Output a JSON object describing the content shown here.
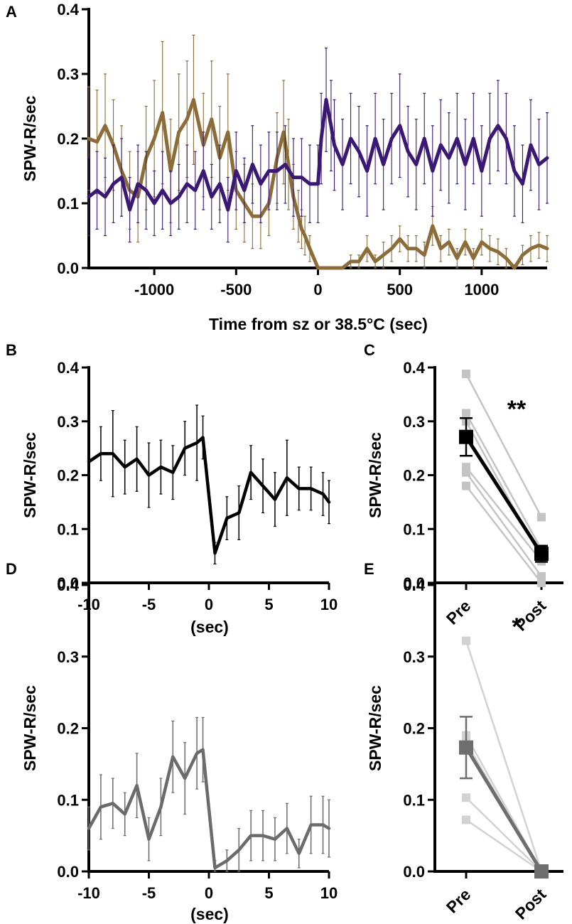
{
  "colors": {
    "purple": "#3a1873",
    "brown": "#8c6d3a",
    "black": "#000000",
    "gray": "#6b6b6b",
    "light_gray": "#c4c4c4",
    "light_gray2": "#d2d2d2",
    "dark_gray": "#6e6e6e"
  },
  "chart_data": [
    {
      "panel": "A",
      "type": "line",
      "title": "",
      "xlabel": "Time from sz or 38.5°C (sec)",
      "ylabel": "SPW-R/sec",
      "xlim": [
        -1400,
        1400
      ],
      "ylim": [
        0,
        0.4
      ],
      "xticks": [
        -1000,
        -500,
        0,
        500,
        1000
      ],
      "xtick_labels": [
        "-1000",
        "-500",
        "0",
        "500",
        "1000"
      ],
      "yticks": [
        0.0,
        0.1,
        0.2,
        0.3,
        0.4
      ],
      "ytick_labels": [
        "0.0",
        "0.1",
        "0.2",
        "0.3",
        "0.4"
      ],
      "series": [
        {
          "name": "brown",
          "color_key": "brown",
          "x": [
            -1400,
            -1350,
            -1300,
            -1250,
            -1200,
            -1150,
            -1100,
            -1050,
            -1000,
            -950,
            -900,
            -850,
            -800,
            -760,
            -700,
            -650,
            -600,
            -550,
            -500,
            -450,
            -400,
            -350,
            -300,
            -250,
            -210,
            -180,
            -150,
            -120,
            -100,
            -80,
            -50,
            0,
            50,
            100,
            150,
            200,
            250,
            300,
            350,
            400,
            450,
            500,
            550,
            600,
            650,
            700,
            750,
            800,
            850,
            900,
            950,
            1000,
            1050,
            1100,
            1150,
            1200,
            1250,
            1300,
            1350,
            1400
          ],
          "y": [
            0.2,
            0.195,
            0.22,
            0.19,
            0.15,
            0.12,
            0.11,
            0.17,
            0.2,
            0.24,
            0.15,
            0.21,
            0.23,
            0.26,
            0.19,
            0.23,
            0.17,
            0.21,
            0.12,
            0.1,
            0.08,
            0.08,
            0.1,
            0.17,
            0.21,
            0.16,
            0.11,
            0.08,
            0.06,
            0.05,
            0.03,
            0.0,
            0.0,
            0.0,
            0.0,
            0.01,
            0.01,
            0.03,
            0.01,
            0.02,
            0.03,
            0.045,
            0.03,
            0.03,
            0.02,
            0.065,
            0.03,
            0.04,
            0.015,
            0.04,
            0.015,
            0.04,
            0.03,
            0.025,
            0.015,
            0.0,
            0.02,
            0.03,
            0.035,
            0.03
          ],
          "err": [
            0.08,
            0.08,
            0.08,
            0.07,
            0.07,
            0.06,
            0.07,
            0.08,
            0.09,
            0.11,
            0.08,
            0.09,
            0.09,
            0.1,
            0.08,
            0.09,
            0.08,
            0.09,
            0.06,
            0.06,
            0.05,
            0.05,
            0.05,
            0.07,
            0.08,
            0.07,
            0.05,
            0.04,
            0.03,
            0.03,
            0.02,
            0.0,
            0.0,
            0.0,
            0.0,
            0.01,
            0.01,
            0.02,
            0.01,
            0.02,
            0.02,
            0.02,
            0.02,
            0.02,
            0.02,
            0.03,
            0.02,
            0.02,
            0.015,
            0.02,
            0.015,
            0.02,
            0.02,
            0.02,
            0.015,
            0.005,
            0.015,
            0.02,
            0.02,
            0.02
          ]
        },
        {
          "name": "purple",
          "color_key": "purple",
          "x": [
            -1400,
            -1350,
            -1300,
            -1250,
            -1200,
            -1150,
            -1100,
            -1050,
            -1000,
            -950,
            -900,
            -850,
            -800,
            -750,
            -700,
            -650,
            -600,
            -550,
            -500,
            -450,
            -400,
            -350,
            -300,
            -250,
            -200,
            -150,
            -100,
            -50,
            0,
            20,
            50,
            80,
            100,
            150,
            200,
            250,
            300,
            350,
            400,
            450,
            500,
            550,
            600,
            650,
            700,
            750,
            800,
            850,
            900,
            950,
            1000,
            1050,
            1100,
            1150,
            1200,
            1250,
            1300,
            1350,
            1400
          ],
          "y": [
            0.11,
            0.12,
            0.11,
            0.13,
            0.14,
            0.09,
            0.13,
            0.12,
            0.1,
            0.12,
            0.1,
            0.11,
            0.13,
            0.12,
            0.15,
            0.11,
            0.13,
            0.09,
            0.15,
            0.12,
            0.16,
            0.13,
            0.15,
            0.15,
            0.16,
            0.14,
            0.14,
            0.13,
            0.13,
            0.2,
            0.26,
            0.22,
            0.19,
            0.16,
            0.2,
            0.18,
            0.15,
            0.2,
            0.16,
            0.2,
            0.22,
            0.18,
            0.16,
            0.2,
            0.15,
            0.19,
            0.17,
            0.2,
            0.16,
            0.2,
            0.15,
            0.2,
            0.22,
            0.2,
            0.15,
            0.13,
            0.19,
            0.16,
            0.17
          ],
          "err": [
            0.06,
            0.06,
            0.06,
            0.06,
            0.06,
            0.05,
            0.06,
            0.06,
            0.05,
            0.06,
            0.05,
            0.05,
            0.06,
            0.06,
            0.06,
            0.05,
            0.06,
            0.05,
            0.06,
            0.05,
            0.06,
            0.06,
            0.06,
            0.06,
            0.06,
            0.06,
            0.06,
            0.06,
            0.06,
            0.07,
            0.08,
            0.07,
            0.07,
            0.07,
            0.07,
            0.07,
            0.07,
            0.07,
            0.07,
            0.07,
            0.08,
            0.07,
            0.07,
            0.07,
            0.07,
            0.07,
            0.07,
            0.07,
            0.07,
            0.07,
            0.07,
            0.07,
            0.07,
            0.07,
            0.07,
            0.06,
            0.07,
            0.07,
            0.07
          ]
        }
      ]
    },
    {
      "panel": "B",
      "type": "line",
      "xlabel": "(sec)",
      "ylabel": "SPW-R/sec",
      "xlim": [
        -10,
        10
      ],
      "ylim": [
        0,
        0.4
      ],
      "xticks": [
        -10,
        -5,
        0,
        5,
        10
      ],
      "xtick_labels": [
        "-10",
        "-5",
        "0",
        "5",
        "10"
      ],
      "yticks": [
        0.0,
        0.1,
        0.2,
        0.3,
        0.4
      ],
      "ytick_labels": [
        "0.0",
        "0.1",
        "0.2",
        "0.3",
        "0.4"
      ],
      "series": [
        {
          "name": "mean",
          "color_key": "black",
          "x": [
            -10,
            -9,
            -8,
            -7,
            -6,
            -5,
            -4,
            -3,
            -2,
            -1,
            -0.5,
            0.5,
            1.5,
            2.5,
            3.5,
            4.5,
            5.5,
            6.5,
            7.5,
            8.5,
            9.5,
            10
          ],
          "y": [
            0.225,
            0.24,
            0.24,
            0.215,
            0.23,
            0.2,
            0.215,
            0.205,
            0.25,
            0.26,
            0.27,
            0.055,
            0.12,
            0.13,
            0.205,
            0.18,
            0.155,
            0.195,
            0.175,
            0.175,
            0.165,
            0.15
          ],
          "err": [
            0.06,
            0.05,
            0.08,
            0.05,
            0.06,
            0.06,
            0.05,
            0.05,
            0.05,
            0.07,
            0.04,
            0.02,
            0.04,
            0.05,
            0.05,
            0.05,
            0.05,
            0.07,
            0.04,
            0.04,
            0.04,
            0.04
          ]
        }
      ]
    },
    {
      "panel": "C",
      "type": "line",
      "xlabel": "",
      "ylabel": "SPW-R/sec",
      "categories": [
        "Pre",
        "Post"
      ],
      "ylim": [
        0,
        0.4
      ],
      "yticks": [
        0.0,
        0.1,
        0.2,
        0.3,
        0.4
      ],
      "ytick_labels": [
        "0.0",
        "0.1",
        "0.2",
        "0.3",
        "0.4"
      ],
      "annotation": "**",
      "individual": [
        [
          0.388,
          0.122
        ],
        [
          0.315,
          0.062
        ],
        [
          0.3,
          0.045
        ],
        [
          0.215,
          0.04
        ],
        [
          0.205,
          0.012
        ],
        [
          0.18,
          0.0
        ]
      ],
      "mean": [
        0.271,
        0.054
      ],
      "mean_err": [
        0.035,
        0.015
      ],
      "individual_color_key": "light_gray",
      "mean_color_key": "black"
    },
    {
      "panel": "D",
      "type": "line",
      "xlabel": "(sec)",
      "ylabel": "SPW-R/sec",
      "xlim": [
        -10,
        10
      ],
      "ylim": [
        0,
        0.4
      ],
      "xticks": [
        -10,
        -5,
        0,
        5,
        10
      ],
      "xtick_labels": [
        "-10",
        "-5",
        "0",
        "5",
        "10"
      ],
      "yticks": [
        0.0,
        0.1,
        0.2,
        0.3,
        0.4
      ],
      "ytick_labels": [
        "0.0",
        "0.1",
        "0.2",
        "0.3",
        "0.4"
      ],
      "series": [
        {
          "name": "mean",
          "color_key": "gray",
          "x": [
            -10,
            -9,
            -8,
            -7,
            -6,
            -5,
            -4,
            -3,
            -2,
            -1,
            -0.5,
            0.5,
            1.5,
            2.5,
            3.5,
            4.5,
            5.5,
            6.5,
            7.5,
            8.5,
            9.5,
            10
          ],
          "y": [
            0.06,
            0.09,
            0.095,
            0.08,
            0.12,
            0.045,
            0.09,
            0.16,
            0.13,
            0.165,
            0.17,
            0.005,
            0.015,
            0.03,
            0.05,
            0.05,
            0.045,
            0.06,
            0.025,
            0.065,
            0.065,
            0.06
          ],
          "err": [
            0.03,
            0.045,
            0.035,
            0.03,
            0.045,
            0.03,
            0.04,
            0.05,
            0.05,
            0.05,
            0.045,
            0.01,
            0.015,
            0.03,
            0.035,
            0.035,
            0.03,
            0.035,
            0.02,
            0.04,
            0.04,
            0.04
          ]
        }
      ]
    },
    {
      "panel": "E",
      "type": "line",
      "xlabel": "",
      "ylabel": "SPW-R/sec",
      "categories": [
        "Pre",
        "Post"
      ],
      "ylim": [
        0,
        0.4
      ],
      "yticks": [
        0.0,
        0.1,
        0.2,
        0.3,
        0.4
      ],
      "ytick_labels": [
        "0.0",
        "0.1",
        "0.2",
        "0.3",
        "0.4"
      ],
      "annotation": "*",
      "individual": [
        [
          0.322,
          0.0
        ],
        [
          0.19,
          0.0
        ],
        [
          0.18,
          0.0
        ],
        [
          0.103,
          0.0
        ],
        [
          0.072,
          0.0
        ]
      ],
      "mean": [
        0.173,
        0.0
      ],
      "mean_err": [
        0.043,
        0.004
      ],
      "individual_color_key": "light_gray2",
      "mean_color_key": "dark_gray"
    }
  ]
}
